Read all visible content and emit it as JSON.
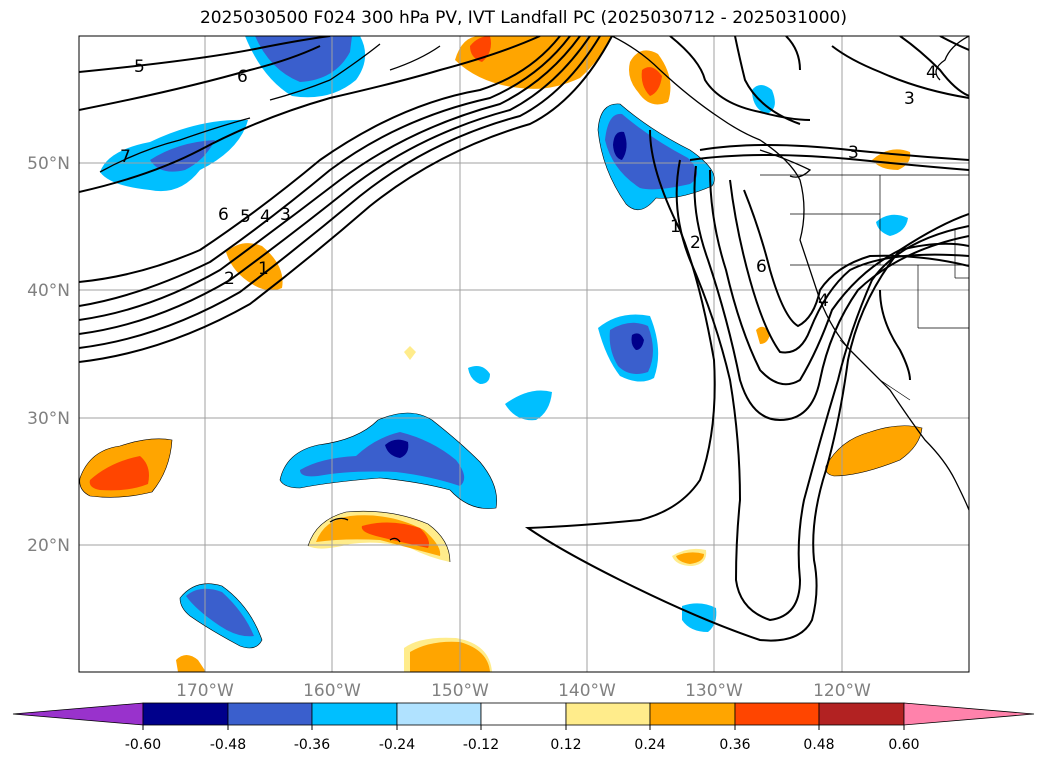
{
  "title": "2025030500 F024 300 hPa PV, IVT Landfall PC (2025030712 - 2025031000)",
  "axes": {
    "lat_ticks": [
      "50°N",
      "40°N",
      "30°N",
      "20°N"
    ],
    "lon_ticks": [
      "170°W",
      "160°W",
      "150°W",
      "140°W",
      "130°W",
      "120°W"
    ]
  },
  "colorbar": {
    "levels": [
      "-0.60",
      "-0.48",
      "-0.36",
      "-0.24",
      "-0.12",
      "0.12",
      "0.24",
      "0.36",
      "0.48",
      "0.60"
    ],
    "colors": [
      "#9932cc",
      "#00008b",
      "#3a5fcd",
      "#00bfff",
      "#b0e2ff",
      "#ffffff",
      "#ffec8b",
      "#ffa500",
      "#ff4500",
      "#b22222",
      "#ff82ab"
    ]
  },
  "contour_labels": [
    "5",
    "6",
    "7",
    "6",
    "5",
    "4",
    "3",
    "2",
    "1",
    "1",
    "2",
    "6",
    "4",
    "3",
    "4",
    "3"
  ],
  "map_extent": {
    "lon_range": [
      "180°W",
      "110°W"
    ],
    "lat_range": [
      "10°N",
      "60°N"
    ]
  }
}
